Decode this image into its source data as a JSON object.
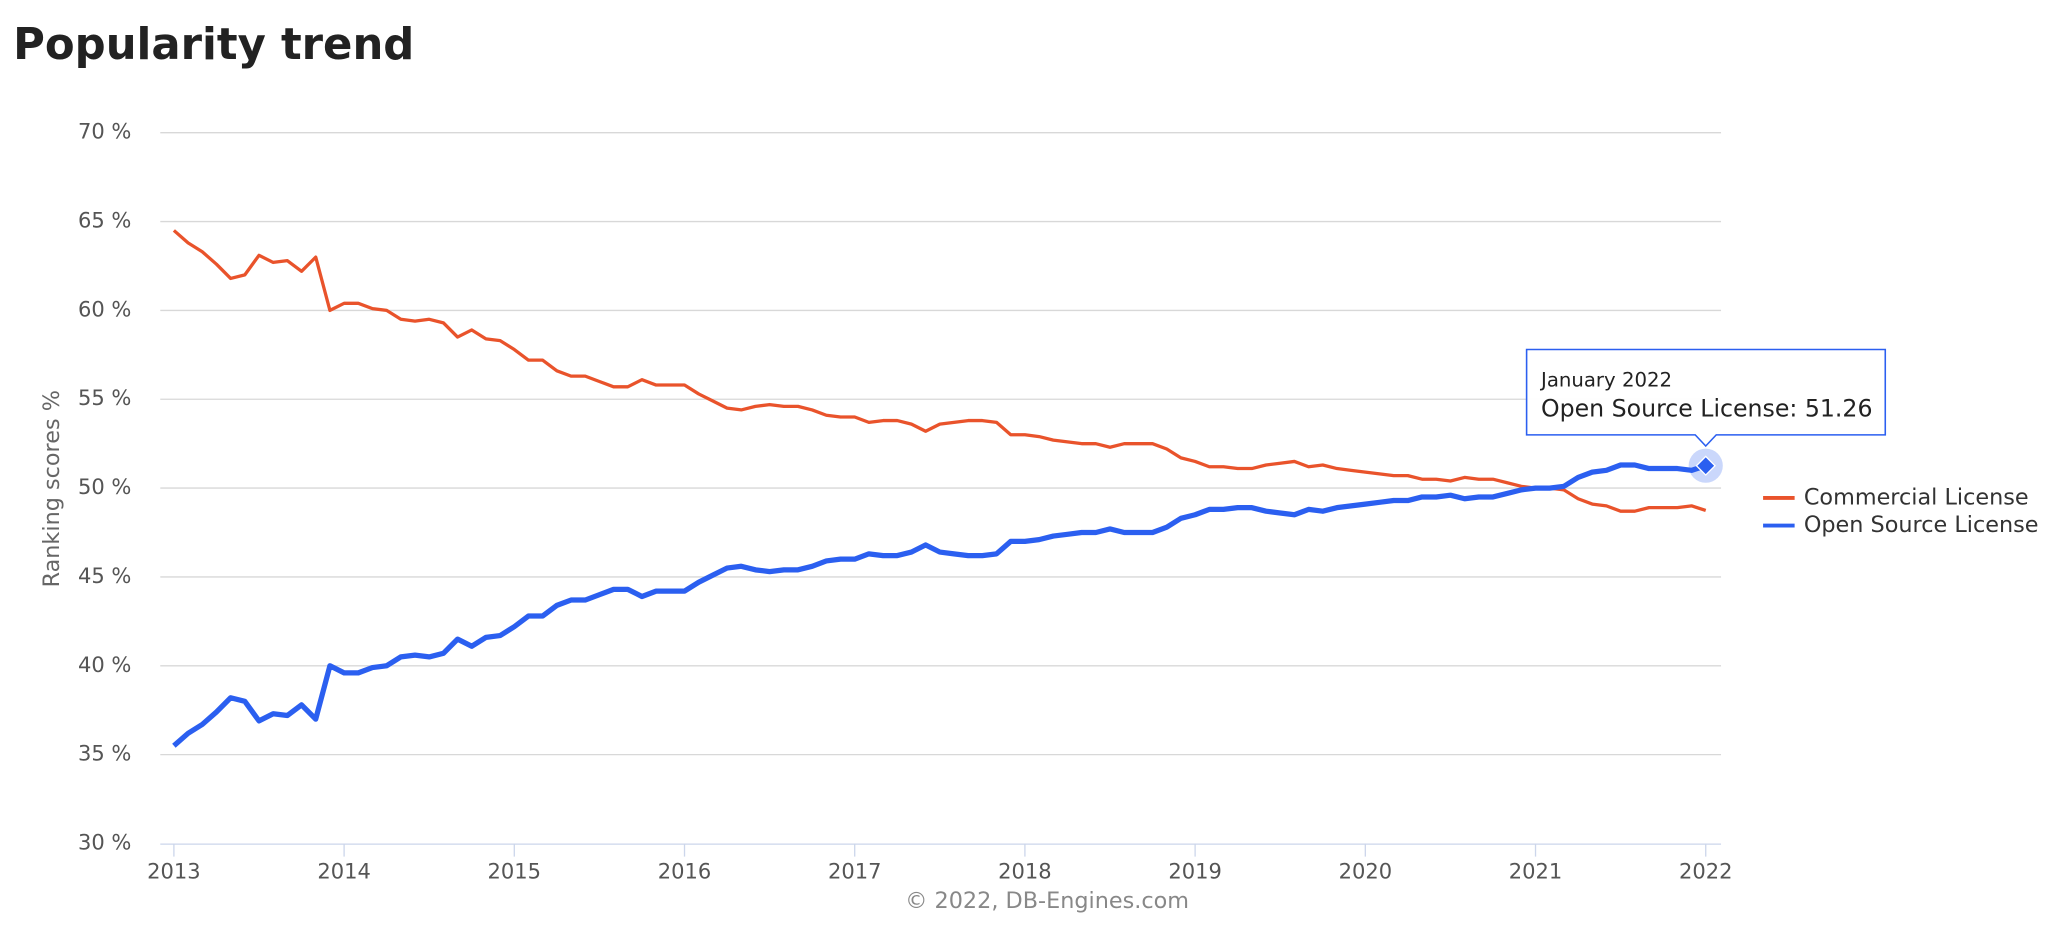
{
  "chart_data": {
    "type": "line",
    "title": "Popularity trend",
    "y_label": "Ranking scores %",
    "credits": "© 2022, DB-Engines.com",
    "tooltip": {
      "title": "January 2022",
      "label": "Open Source License: 51.26"
    },
    "x": [
      "2013-01",
      "2013-02",
      "2013-03",
      "2013-04",
      "2013-05",
      "2013-06",
      "2013-07",
      "2013-08",
      "2013-09",
      "2013-10",
      "2013-11",
      "2013-12",
      "2014-01",
      "2014-02",
      "2014-03",
      "2014-04",
      "2014-05",
      "2014-06",
      "2014-07",
      "2014-08",
      "2014-09",
      "2014-10",
      "2014-11",
      "2014-12",
      "2015-01",
      "2015-02",
      "2015-03",
      "2015-04",
      "2015-05",
      "2015-06",
      "2015-07",
      "2015-08",
      "2015-09",
      "2015-10",
      "2015-11",
      "2015-12",
      "2016-01",
      "2016-02",
      "2016-03",
      "2016-04",
      "2016-05",
      "2016-06",
      "2016-07",
      "2016-08",
      "2016-09",
      "2016-10",
      "2016-11",
      "2016-12",
      "2017-01",
      "2017-02",
      "2017-03",
      "2017-04",
      "2017-05",
      "2017-06",
      "2017-07",
      "2017-08",
      "2017-09",
      "2017-10",
      "2017-11",
      "2017-12",
      "2018-01",
      "2018-02",
      "2018-03",
      "2018-04",
      "2018-05",
      "2018-06",
      "2018-07",
      "2018-08",
      "2018-09",
      "2018-10",
      "2018-11",
      "2018-12",
      "2019-01",
      "2019-02",
      "2019-03",
      "2019-04",
      "2019-05",
      "2019-06",
      "2019-07",
      "2019-08",
      "2019-09",
      "2019-10",
      "2019-11",
      "2019-12",
      "2020-01",
      "2020-02",
      "2020-03",
      "2020-04",
      "2020-05",
      "2020-06",
      "2020-07",
      "2020-08",
      "2020-09",
      "2020-10",
      "2020-11",
      "2020-12",
      "2021-01",
      "2021-02",
      "2021-03",
      "2021-04",
      "2021-05",
      "2021-06",
      "2021-07",
      "2021-08",
      "2021-09",
      "2021-10",
      "2021-11",
      "2021-12",
      "2022-01"
    ],
    "series": [
      {
        "name": "Commercial License",
        "color": "#e9532b",
        "values": [
          64.5,
          63.8,
          63.3,
          62.6,
          61.8,
          62.0,
          63.1,
          62.7,
          62.8,
          62.2,
          63.0,
          60.0,
          60.4,
          60.4,
          60.1,
          60.0,
          59.5,
          59.4,
          59.5,
          59.3,
          58.5,
          58.9,
          58.4,
          58.3,
          57.8,
          57.2,
          57.2,
          56.6,
          56.3,
          56.3,
          56.0,
          55.7,
          55.7,
          56.1,
          55.8,
          55.8,
          55.8,
          55.3,
          54.9,
          54.5,
          54.4,
          54.6,
          54.7,
          54.6,
          54.6,
          54.4,
          54.1,
          54.0,
          54.0,
          53.7,
          53.8,
          53.8,
          53.6,
          53.2,
          53.6,
          53.7,
          53.8,
          53.8,
          53.7,
          53.0,
          53.0,
          52.9,
          52.7,
          52.6,
          52.5,
          52.5,
          52.3,
          52.5,
          52.5,
          52.5,
          52.2,
          51.7,
          51.5,
          51.2,
          51.2,
          51.1,
          51.1,
          51.3,
          51.4,
          51.5,
          51.2,
          51.3,
          51.1,
          51.0,
          50.9,
          50.8,
          50.7,
          50.7,
          50.5,
          50.5,
          50.4,
          50.6,
          50.5,
          50.5,
          50.3,
          50.1,
          50.0,
          50.0,
          49.9,
          49.4,
          49.1,
          49.0,
          48.7,
          48.7,
          48.9,
          48.9,
          48.9,
          49.0,
          48.74
        ]
      },
      {
        "name": "Open Source License",
        "color": "#2b5ff0",
        "values": [
          35.5,
          36.2,
          36.7,
          37.4,
          38.2,
          38.0,
          36.9,
          37.3,
          37.2,
          37.8,
          37.0,
          40.0,
          39.6,
          39.6,
          39.9,
          40.0,
          40.5,
          40.6,
          40.5,
          40.7,
          41.5,
          41.1,
          41.6,
          41.7,
          42.2,
          42.8,
          42.8,
          43.4,
          43.7,
          43.7,
          44.0,
          44.3,
          44.3,
          43.9,
          44.2,
          44.2,
          44.2,
          44.7,
          45.1,
          45.5,
          45.6,
          45.4,
          45.3,
          45.4,
          45.4,
          45.6,
          45.9,
          46.0,
          46.0,
          46.3,
          46.2,
          46.2,
          46.4,
          46.8,
          46.4,
          46.3,
          46.2,
          46.2,
          46.3,
          47.0,
          47.0,
          47.1,
          47.3,
          47.4,
          47.5,
          47.5,
          47.7,
          47.5,
          47.5,
          47.5,
          47.8,
          48.3,
          48.5,
          48.8,
          48.8,
          48.9,
          48.9,
          48.7,
          48.6,
          48.5,
          48.8,
          48.7,
          48.9,
          49.0,
          49.1,
          49.2,
          49.3,
          49.3,
          49.5,
          49.5,
          49.6,
          49.4,
          49.5,
          49.5,
          49.7,
          49.9,
          50.0,
          50.0,
          50.1,
          50.6,
          50.9,
          51.0,
          51.3,
          51.3,
          51.1,
          51.1,
          51.1,
          51.0,
          51.26
        ]
      }
    ],
    "xlim": [
      2012.92,
      2022.09
    ],
    "xticks": [
      2013,
      2014,
      2015,
      2016,
      2017,
      2018,
      2019,
      2020,
      2021,
      2022
    ],
    "ylim": [
      30,
      70
    ],
    "yticks": [
      {
        "value": 30,
        "label": "30 %"
      },
      {
        "value": 35,
        "label": "35 %"
      },
      {
        "value": 40,
        "label": "40 %"
      },
      {
        "value": 45,
        "label": "45 %"
      },
      {
        "value": 50,
        "label": "50 %"
      },
      {
        "value": 55,
        "label": "55 %"
      },
      {
        "value": 60,
        "label": "60 %"
      },
      {
        "value": 65,
        "label": "65 %"
      },
      {
        "value": 70,
        "label": "70 %"
      }
    ],
    "grid": true,
    "legend": "right"
  }
}
